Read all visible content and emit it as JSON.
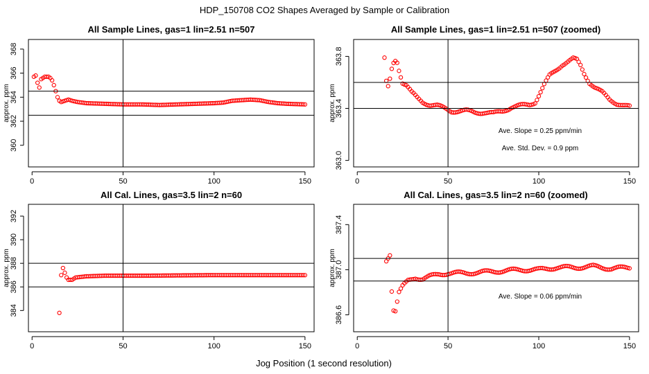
{
  "figure": {
    "title": "HDP_150708  CO2 Shapes Averaged by Sample or Calibration",
    "xlabel": "Jog Position (1 second resolution)"
  },
  "colors": {
    "points": "#ff0000",
    "lines": "#000000",
    "background": "#ffffff"
  },
  "chart_data": [
    {
      "type": "scatter",
      "title": "All Sample Lines, gas=1 lin=2.51 n=507",
      "xlabel": "",
      "ylabel": "approx. ppm",
      "xlim": [
        -2,
        155
      ],
      "ylim": [
        358.2,
        368.8
      ],
      "xticks": [
        0,
        50,
        100,
        150
      ],
      "yticks": [
        360,
        362,
        364,
        366,
        368
      ],
      "hlines": [
        364.5,
        362.5
      ],
      "vline": 50,
      "annotations": [],
      "anchors": [
        [
          1,
          365.7
        ],
        [
          2,
          365.8
        ],
        [
          3,
          365.2
        ],
        [
          4,
          364.8
        ],
        [
          5,
          365.5
        ],
        [
          6,
          365.6
        ],
        [
          7,
          365.7
        ],
        [
          8,
          365.7
        ],
        [
          9,
          365.7
        ],
        [
          10,
          365.6
        ],
        [
          11,
          365.4
        ],
        [
          12,
          365.0
        ],
        [
          13,
          364.5
        ],
        [
          14,
          364.0
        ],
        [
          15,
          363.7
        ],
        [
          16,
          363.6
        ],
        [
          18,
          363.7
        ],
        [
          20,
          363.8
        ],
        [
          22,
          363.7
        ],
        [
          25,
          363.6
        ],
        [
          30,
          363.5
        ],
        [
          40,
          363.45
        ],
        [
          50,
          363.4
        ],
        [
          60,
          363.4
        ],
        [
          70,
          363.35
        ],
        [
          80,
          363.4
        ],
        [
          90,
          363.45
        ],
        [
          100,
          363.5
        ],
        [
          105,
          363.55
        ],
        [
          110,
          363.7
        ],
        [
          115,
          363.75
        ],
        [
          120,
          363.8
        ],
        [
          125,
          363.75
        ],
        [
          130,
          363.6
        ],
        [
          135,
          363.5
        ],
        [
          140,
          363.45
        ],
        [
          150,
          363.4
        ]
      ]
    },
    {
      "type": "scatter",
      "title": "All Sample Lines, gas=1 lin=2.51 n=507 (zoomed)",
      "xlabel": "",
      "ylabel": "approx. ppm",
      "xlim": [
        -2,
        155
      ],
      "ylim": [
        362.95,
        363.93
      ],
      "xticks": [
        0,
        50,
        100,
        150
      ],
      "yticks": [
        363.0,
        363.4,
        363.8
      ],
      "hlines": [
        363.6,
        363.4
      ],
      "vline": 50,
      "annotations": [
        "Ave. Slope =  0.25  ppm/min",
        "Ave. Std. Dev. =  0.9  ppm"
      ],
      "anchors": [
        [
          15,
          363.78
        ],
        [
          16,
          363.6
        ],
        [
          17,
          363.56
        ],
        [
          18,
          363.62
        ],
        [
          19,
          363.7
        ],
        [
          20,
          363.75
        ],
        [
          21,
          363.77
        ],
        [
          22,
          363.76
        ],
        [
          23,
          363.7
        ],
        [
          24,
          363.65
        ],
        [
          25,
          363.6
        ],
        [
          27,
          363.58
        ],
        [
          30,
          363.52
        ],
        [
          33,
          363.48
        ],
        [
          36,
          363.45
        ],
        [
          40,
          363.43
        ],
        [
          44,
          363.42
        ],
        [
          48,
          363.4
        ],
        [
          52,
          363.38
        ],
        [
          56,
          363.38
        ],
        [
          60,
          363.38
        ],
        [
          65,
          363.37
        ],
        [
          70,
          363.37
        ],
        [
          75,
          363.36
        ],
        [
          80,
          363.38
        ],
        [
          85,
          363.41
        ],
        [
          90,
          363.42
        ],
        [
          95,
          363.43
        ],
        [
          98,
          363.45
        ],
        [
          100,
          363.5
        ],
        [
          103,
          363.58
        ],
        [
          106,
          363.65
        ],
        [
          110,
          363.7
        ],
        [
          113,
          363.74
        ],
        [
          116,
          363.76
        ],
        [
          119,
          363.78
        ],
        [
          121,
          363.77
        ],
        [
          123,
          363.73
        ],
        [
          125,
          363.67
        ],
        [
          128,
          363.6
        ],
        [
          131,
          363.56
        ],
        [
          135,
          363.52
        ],
        [
          139,
          363.47
        ],
        [
          143,
          363.44
        ],
        [
          147,
          363.42
        ],
        [
          150,
          363.41
        ]
      ]
    },
    {
      "type": "scatter",
      "title": "All Cal. Lines, gas=3.5 lin=2 n=60",
      "xlabel": "",
      "ylabel": "approx. ppm",
      "xlim": [
        -2,
        155
      ],
      "ylim": [
        382.2,
        393.0
      ],
      "xticks": [
        0,
        50,
        100,
        150
      ],
      "yticks": [
        384,
        386,
        388,
        390,
        392
      ],
      "hlines": [
        388.0,
        386.0
      ],
      "vline": 50,
      "annotations": [],
      "anchors": [
        [
          15,
          383.8
        ],
        [
          16,
          387.0
        ],
        [
          17,
          387.6
        ],
        [
          18,
          387.2
        ],
        [
          19,
          386.8
        ],
        [
          20,
          386.6
        ],
        [
          22,
          386.6
        ],
        [
          24,
          386.8
        ],
        [
          30,
          386.9
        ],
        [
          40,
          386.95
        ],
        [
          60,
          386.95
        ],
        [
          100,
          387.0
        ],
        [
          150,
          387.0
        ]
      ]
    },
    {
      "type": "scatter",
      "title": "All Cal. Lines, gas=3.5 lin=2 n=60 (zoomed)",
      "xlabel": "",
      "ylabel": "approx. ppm",
      "xlim": [
        -2,
        155
      ],
      "ylim": [
        386.45,
        387.58
      ],
      "xticks": [
        0,
        50,
        100,
        150
      ],
      "yticks": [
        386.6,
        387.0,
        387.4
      ],
      "hlines": [
        387.1,
        386.9
      ],
      "vline": 50,
      "annotations": [
        "Ave. Slope =  0.06  ppm/min"
      ],
      "anchors": [
        [
          16,
          387.08
        ],
        [
          18,
          387.14
        ],
        [
          19,
          386.82
        ],
        [
          20,
          386.65
        ],
        [
          21,
          386.64
        ],
        [
          22,
          386.72
        ],
        [
          23,
          386.8
        ],
        [
          25,
          386.85
        ],
        [
          28,
          386.9
        ],
        [
          32,
          386.93
        ],
        [
          36,
          386.92
        ],
        [
          40,
          386.94
        ],
        [
          45,
          386.96
        ],
        [
          50,
          386.97
        ],
        [
          60,
          386.97
        ],
        [
          70,
          386.98
        ],
        [
          80,
          386.99
        ],
        [
          90,
          387.0
        ],
        [
          100,
          387.0
        ],
        [
          110,
          387.02
        ],
        [
          120,
          387.02
        ],
        [
          130,
          387.03
        ],
        [
          140,
          387.01
        ],
        [
          150,
          387.02
        ]
      ]
    }
  ]
}
